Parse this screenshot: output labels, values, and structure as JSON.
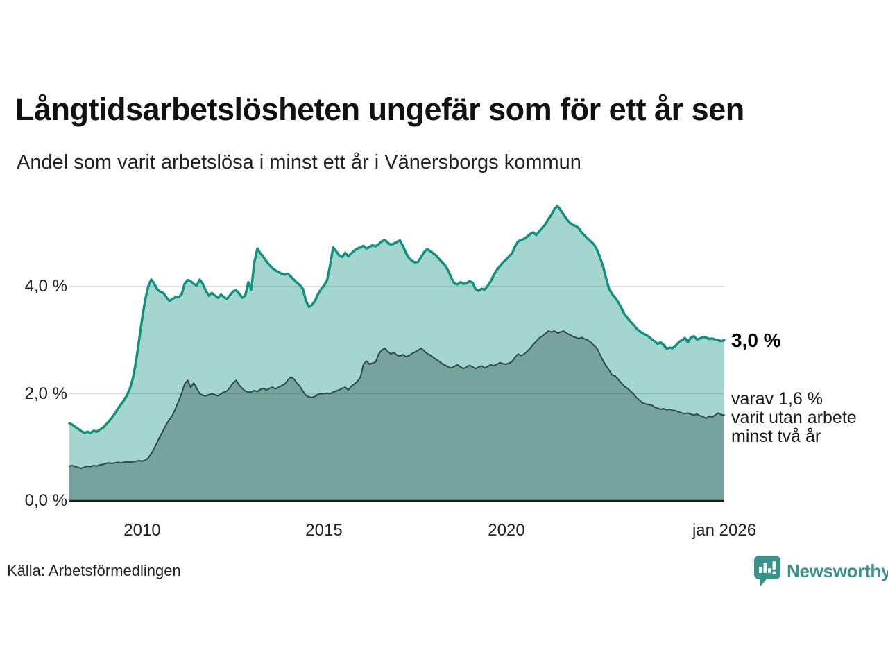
{
  "header": {
    "title": "Långtidsarbetslösheten ungefär som för ett år sen",
    "subtitle": "Andel som varit arbetslösa i minst ett år i Vänersborgs kommun"
  },
  "axes": {
    "y_ticks": [
      "4,0 %",
      "2,0 %",
      "0,0 %"
    ],
    "x_ticks": [
      "2010",
      "2015",
      "2020",
      "jan 2026"
    ]
  },
  "annotations": {
    "total_end_label": "3,0 %",
    "subset_end_lines": [
      "varav 1,6 %",
      "varit utan arbete",
      "minst två år"
    ]
  },
  "source": "Källa: Arbetsförmedlingen",
  "brand": {
    "name": "Newsworthy",
    "color": "#3a938b"
  },
  "chart_data": {
    "type": "area",
    "title": "Långtidsarbetslösheten ungefär som för ett år sen",
    "x_start": "2008-01",
    "x_end": "2026-01",
    "x_step": "month",
    "x_tick_labels": [
      "2010",
      "2015",
      "2020",
      "jan 2026"
    ],
    "x_tick_month_index": [
      24,
      84,
      144,
      216
    ],
    "ylim": [
      0,
      5.8
    ],
    "gridlines_pct": [
      4.0,
      2.0
    ],
    "grid_color": "#d7d7d7",
    "axis_color": "#1b1b1b",
    "series": [
      {
        "name": "Arbetslösa minst ett år",
        "end_value_label": "3,0 %",
        "line_color": "#0f9180",
        "line_width": 3.5,
        "fill_color": "rgba(15,145,127,0.38)",
        "values": [
          1.45,
          1.42,
          1.38,
          1.34,
          1.3,
          1.27,
          1.29,
          1.27,
          1.31,
          1.29,
          1.33,
          1.36,
          1.42,
          1.48,
          1.55,
          1.63,
          1.72,
          1.8,
          1.88,
          1.97,
          2.1,
          2.3,
          2.6,
          3.0,
          3.4,
          3.75,
          4.0,
          4.13,
          4.05,
          3.95,
          3.9,
          3.88,
          3.8,
          3.73,
          3.77,
          3.8,
          3.8,
          3.85,
          4.05,
          4.12,
          4.1,
          4.05,
          4.02,
          4.13,
          4.05,
          3.92,
          3.83,
          3.88,
          3.83,
          3.79,
          3.85,
          3.8,
          3.77,
          3.84,
          3.91,
          3.93,
          3.87,
          3.79,
          3.83,
          4.08,
          3.94,
          4.45,
          4.71,
          4.62,
          4.55,
          4.47,
          4.4,
          4.34,
          4.3,
          4.27,
          4.24,
          4.22,
          4.24,
          4.19,
          4.13,
          4.07,
          4.03,
          3.96,
          3.74,
          3.62,
          3.66,
          3.73,
          3.86,
          3.95,
          4.02,
          4.12,
          4.4,
          4.73,
          4.66,
          4.58,
          4.55,
          4.63,
          4.56,
          4.62,
          4.67,
          4.71,
          4.73,
          4.76,
          4.71,
          4.74,
          4.77,
          4.75,
          4.79,
          4.84,
          4.87,
          4.82,
          4.78,
          4.8,
          4.83,
          4.86,
          4.76,
          4.63,
          4.53,
          4.48,
          4.45,
          4.46,
          4.55,
          4.64,
          4.7,
          4.66,
          4.62,
          4.58,
          4.51,
          4.45,
          4.39,
          4.29,
          4.16,
          4.06,
          4.04,
          4.08,
          4.05,
          4.06,
          4.1,
          4.07,
          3.95,
          3.92,
          3.96,
          3.94,
          4.02,
          4.1,
          4.22,
          4.31,
          4.38,
          4.45,
          4.5,
          4.56,
          4.62,
          4.75,
          4.84,
          4.87,
          4.89,
          4.93,
          4.98,
          5.01,
          4.96,
          5.03,
          5.1,
          5.16,
          5.26,
          5.34,
          5.45,
          5.5,
          5.43,
          5.34,
          5.26,
          5.19,
          5.15,
          5.13,
          5.09,
          5.0,
          4.95,
          4.89,
          4.84,
          4.79,
          4.69,
          4.55,
          4.38,
          4.16,
          3.96,
          3.86,
          3.79,
          3.71,
          3.61,
          3.49,
          3.42,
          3.35,
          3.29,
          3.22,
          3.17,
          3.13,
          3.1,
          3.07,
          3.02,
          2.98,
          2.93,
          2.96,
          2.91,
          2.84,
          2.86,
          2.85,
          2.9,
          2.96,
          3.0,
          3.04,
          2.96,
          3.05,
          3.07,
          3.01,
          3.03,
          3.06,
          3.05,
          3.02,
          3.03,
          3.01,
          3.0,
          2.98,
          3.0
        ]
      },
      {
        "name": "varav utan arbete minst två år",
        "end_value_label": "1,6 %",
        "line_color": "#2c4a45",
        "line_width": 2,
        "fill_color": "rgba(25,60,55,0.33)",
        "values": [
          0.65,
          0.66,
          0.64,
          0.62,
          0.61,
          0.63,
          0.65,
          0.64,
          0.66,
          0.65,
          0.67,
          0.68,
          0.7,
          0.71,
          0.7,
          0.71,
          0.72,
          0.71,
          0.72,
          0.73,
          0.72,
          0.73,
          0.74,
          0.75,
          0.74,
          0.76,
          0.8,
          0.88,
          0.98,
          1.1,
          1.21,
          1.32,
          1.43,
          1.52,
          1.6,
          1.72,
          1.86,
          2.0,
          2.18,
          2.25,
          2.12,
          2.2,
          2.1,
          2.0,
          1.97,
          1.96,
          1.98,
          2.0,
          1.98,
          1.96,
          2.0,
          2.03,
          2.05,
          2.12,
          2.2,
          2.25,
          2.16,
          2.1,
          2.05,
          2.03,
          2.03,
          2.06,
          2.04,
          2.08,
          2.1,
          2.07,
          2.1,
          2.12,
          2.09,
          2.12,
          2.15,
          2.18,
          2.25,
          2.31,
          2.28,
          2.2,
          2.14,
          2.05,
          1.97,
          1.94,
          1.93,
          1.95,
          1.99,
          2.0,
          2.0,
          2.01,
          2.0,
          2.03,
          2.05,
          2.07,
          2.1,
          2.12,
          2.07,
          2.14,
          2.18,
          2.23,
          2.31,
          2.55,
          2.61,
          2.55,
          2.57,
          2.59,
          2.74,
          2.81,
          2.85,
          2.79,
          2.74,
          2.77,
          2.72,
          2.7,
          2.73,
          2.69,
          2.71,
          2.75,
          2.78,
          2.81,
          2.85,
          2.8,
          2.75,
          2.72,
          2.68,
          2.64,
          2.6,
          2.56,
          2.53,
          2.5,
          2.48,
          2.51,
          2.54,
          2.5,
          2.47,
          2.5,
          2.53,
          2.5,
          2.47,
          2.5,
          2.52,
          2.48,
          2.51,
          2.54,
          2.52,
          2.55,
          2.58,
          2.56,
          2.55,
          2.57,
          2.6,
          2.68,
          2.74,
          2.71,
          2.74,
          2.79,
          2.85,
          2.92,
          2.98,
          3.04,
          3.08,
          3.12,
          3.17,
          3.15,
          3.17,
          3.13,
          3.15,
          3.17,
          3.13,
          3.1,
          3.07,
          3.05,
          3.03,
          3.05,
          3.02,
          3.0,
          2.96,
          2.9,
          2.85,
          2.73,
          2.62,
          2.52,
          2.44,
          2.35,
          2.33,
          2.27,
          2.2,
          2.14,
          2.1,
          2.05,
          2.0,
          1.93,
          1.88,
          1.83,
          1.81,
          1.8,
          1.79,
          1.75,
          1.73,
          1.71,
          1.72,
          1.7,
          1.71,
          1.69,
          1.68,
          1.66,
          1.64,
          1.63,
          1.64,
          1.62,
          1.6,
          1.62,
          1.59,
          1.57,
          1.54,
          1.58,
          1.56,
          1.6,
          1.64,
          1.61,
          1.6
        ]
      }
    ]
  }
}
